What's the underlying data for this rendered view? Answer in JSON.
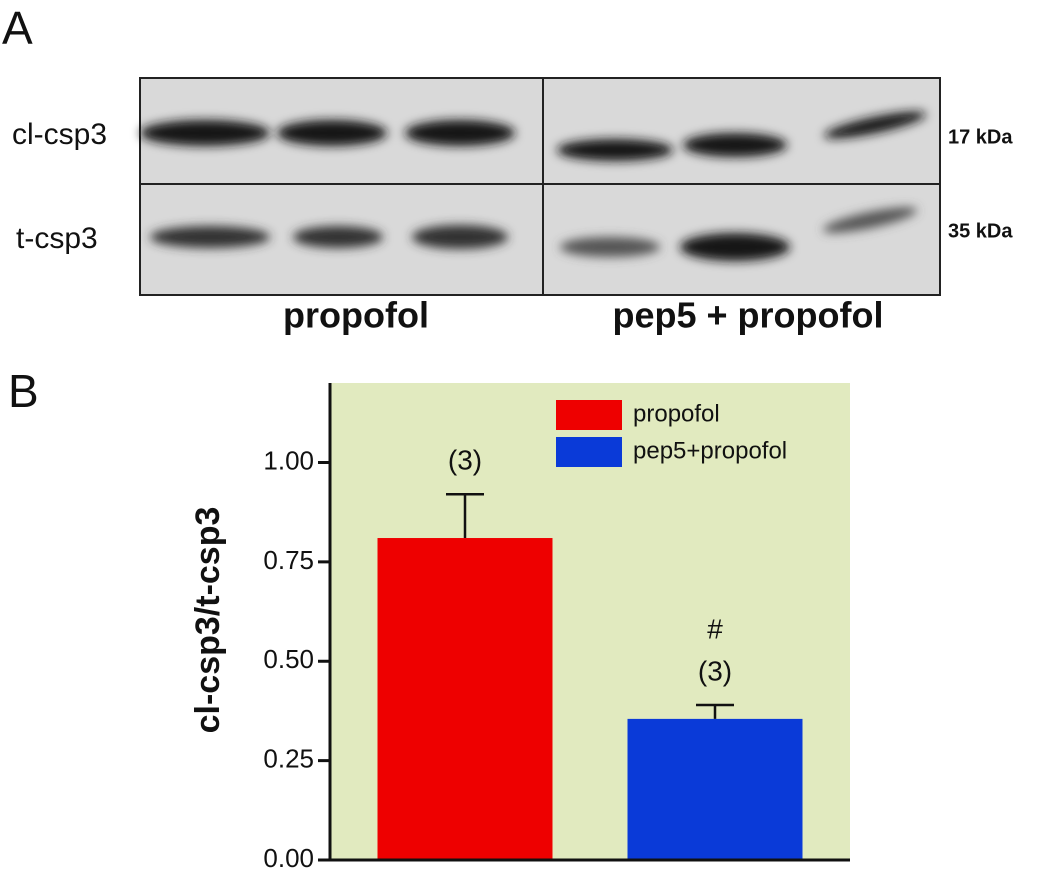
{
  "panel_a": {
    "label": "A",
    "rows": [
      "cl-csp3",
      "t-csp3"
    ],
    "sizes": [
      "17 kDa",
      "35 kDa"
    ],
    "groups": [
      "propofol",
      "pep5 + propofol"
    ]
  },
  "chart_data": {
    "type": "bar",
    "panel_label": "B",
    "ylabel": "cl-csp3/t-csp3",
    "categories": [
      null,
      null
    ],
    "series": [
      {
        "name": "propofol",
        "color": "#ee0000",
        "values": [
          0.81,
          null
        ],
        "errors": [
          0.11,
          null
        ],
        "n_labels": [
          "(3)",
          null
        ],
        "significance": [
          null,
          null
        ]
      },
      {
        "name": "pep5+propofol",
        "color": "#0a3ad8",
        "values": [
          null,
          0.355
        ],
        "errors": [
          null,
          0.035
        ],
        "n_labels": [
          null,
          "(3)"
        ],
        "significance": [
          null,
          "#"
        ]
      }
    ],
    "ylim": [
      0,
      1.2
    ],
    "yticks": [
      {
        "value": 0,
        "label": "0.00"
      },
      {
        "value": 0.25,
        "label": "0.25"
      },
      {
        "value": 0.5,
        "label": "0.50"
      },
      {
        "value": 0.75,
        "label": "0.75"
      },
      {
        "value": 1,
        "label": "1.00"
      }
    ],
    "background": "#e1eabf",
    "legend": "top-right"
  }
}
